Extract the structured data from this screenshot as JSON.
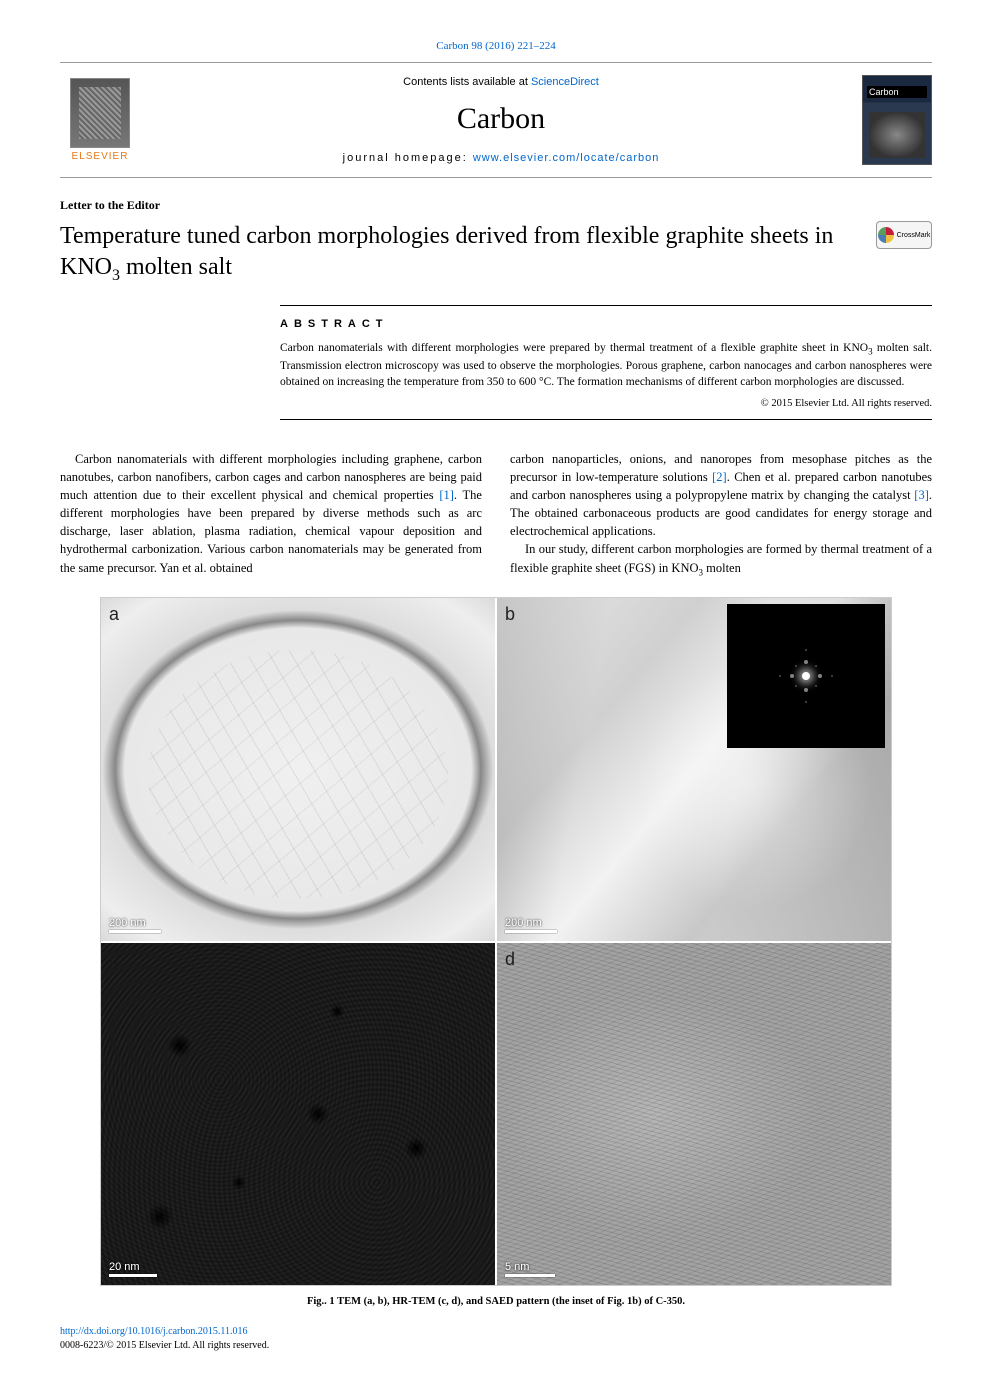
{
  "citation": {
    "journal_link": "Carbon 98 (2016) 221–224"
  },
  "header": {
    "publisher": "ELSEVIER",
    "contents_prefix": "Contents lists available at ",
    "contents_link": "ScienceDirect",
    "journal_name": "Carbon",
    "homepage_label": "journal homepage: ",
    "homepage_url": "www.elsevier.com/locate/carbon"
  },
  "article": {
    "type": "Letter to the Editor",
    "title_html": "Temperature tuned carbon morphologies derived from flexible graphite sheets in KNO₃ molten salt",
    "crossmark": "CrossMark"
  },
  "abstract": {
    "heading": "ABSTRACT",
    "text": "Carbon nanomaterials with different morphologies were prepared by thermal treatment of a flexible graphite sheet in KNO₃ molten salt. Transmission electron microscopy was used to observe the morphologies. Porous graphene, carbon nanocages and carbon nanospheres were obtained on increasing the temperature from 350 to 600 °C. The formation mechanisms of different carbon morphologies are discussed.",
    "copyright": "© 2015 Elsevier Ltd. All rights reserved."
  },
  "body": {
    "left_para": "Carbon nanomaterials with different morphologies including graphene, carbon nanotubes, carbon nanofibers, carbon cages and carbon nanospheres are being paid much attention due to their excellent physical and chemical properties [1]. The different morphologies have been prepared by diverse methods such as arc discharge, laser ablation, plasma radiation, chemical vapour deposition and hydrothermal carbonization. Various carbon nanomaterials may be generated from the same precursor. Yan et al. obtained",
    "right_para1": "carbon nanoparticles, onions, and nanoropes from mesophase pitches as the precursor in low-temperature solutions [2]. Chen et al. prepared carbon nanotubes and carbon nanospheres using a polypropylene matrix by changing the catalyst [3]. The obtained carbonaceous products are good candidates for energy storage and electrochemical applications.",
    "right_para2": "In our study, different carbon morphologies are formed by thermal treatment of a flexible graphite sheet (FGS) in KNO₃ molten",
    "ref1": "[1]",
    "ref2": "[2]",
    "ref3": "[3]"
  },
  "figure": {
    "panels": {
      "a": {
        "label": "a",
        "scalebar": "200 nm"
      },
      "b": {
        "label": "b",
        "scalebar": "200 nm"
      },
      "c": {
        "label": "c",
        "scalebar": "20 nm"
      },
      "d": {
        "label": "d",
        "scalebar": "5 nm"
      }
    },
    "caption": "Fig.. 1 TEM (a, b), HR-TEM (c, d), and SAED pattern (the inset of Fig. 1b) of C-350."
  },
  "footer": {
    "doi_url": "http://dx.doi.org/10.1016/j.carbon.2015.11.016",
    "issn_line": "0008-6223/© 2015 Elsevier Ltd. All rights reserved."
  },
  "colors": {
    "link": "#0066cc",
    "publisher_orange": "#e67817",
    "text": "#000000",
    "rule": "#000000",
    "background": "#ffffff"
  }
}
